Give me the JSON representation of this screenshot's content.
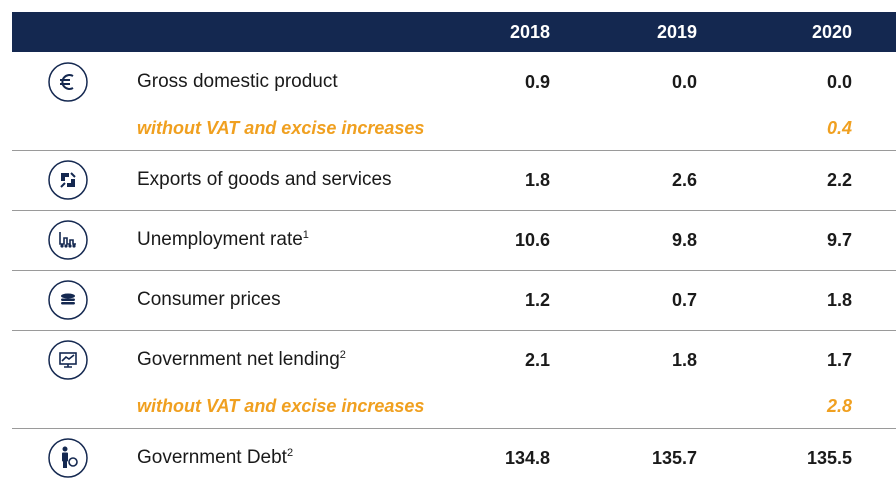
{
  "header": {
    "columns": [
      "2018",
      "2019",
      "2020"
    ]
  },
  "rows": [
    {
      "label": "Gross domestic product",
      "values": [
        "0.9",
        "0.0",
        "0.0"
      ],
      "sub": {
        "label": "without VAT and excise increases",
        "value": "0.4"
      }
    },
    {
      "label": "Exports of goods and services",
      "values": [
        "1.8",
        "2.6",
        "2.2"
      ]
    },
    {
      "label": "Unemployment rate",
      "note": "1",
      "values": [
        "10.6",
        "9.8",
        "9.7"
      ]
    },
    {
      "label": "Consumer prices",
      "values": [
        "1.2",
        "0.7",
        "1.8"
      ]
    },
    {
      "label": "Government net lending",
      "note": "2",
      "values": [
        "2.1",
        "1.8",
        "1.7"
      ],
      "sub": {
        "label": "without VAT and excise increases",
        "value": "2.8"
      }
    },
    {
      "label": "Government Debt",
      "note": "2",
      "values": [
        "134.8",
        "135.7",
        "135.5"
      ]
    }
  ]
}
